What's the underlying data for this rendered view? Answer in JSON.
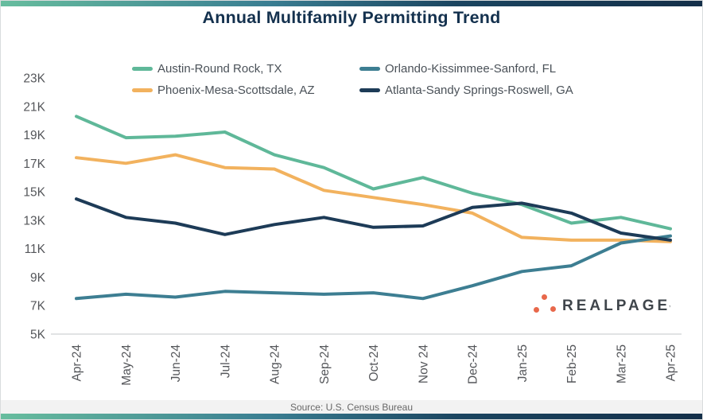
{
  "header": {
    "title": "Annual Multifamily Permitting Trend"
  },
  "chart_data": {
    "type": "line",
    "title": "Annual Multifamily Permitting Trend",
    "xlabel": "",
    "ylabel": "",
    "unit": "permits (thousands)",
    "x": [
      "Apr-24",
      "May-24",
      "Jun-24",
      "Jul-24",
      "Aug-24",
      "Sep-24",
      "Oct-24",
      "Nov 24",
      "Dec-24",
      "Jan-25",
      "Feb-25",
      "Mar-25",
      "Apr-25"
    ],
    "ylim": [
      5,
      23
    ],
    "yticks": [
      5,
      7,
      9,
      11,
      13,
      15,
      17,
      19,
      21,
      23
    ],
    "ytick_format": "{v}K",
    "grid": false,
    "legend_position": "top",
    "series": [
      {
        "name": "Austin-Round Rock, TX",
        "color": "#5fb899",
        "values": [
          20.3,
          18.8,
          18.9,
          19.2,
          17.6,
          16.7,
          15.2,
          16.0,
          14.9,
          14.1,
          12.8,
          13.2,
          12.4
        ]
      },
      {
        "name": "Orlando-Kissimmee-Sanford, FL",
        "color": "#3d7e92",
        "values": [
          7.5,
          7.8,
          7.6,
          8.0,
          7.9,
          7.8,
          7.9,
          7.5,
          8.4,
          9.4,
          9.8,
          11.4,
          11.9
        ]
      },
      {
        "name": "Phoenix-Mesa-Scottsdale, AZ",
        "color": "#f2b25e",
        "values": [
          17.4,
          17.0,
          17.6,
          16.7,
          16.6,
          15.1,
          14.6,
          14.1,
          13.5,
          11.8,
          11.6,
          11.6,
          11.5
        ]
      },
      {
        "name": "Atlanta-Sandy Springs-Roswell, GA",
        "color": "#1d3b57",
        "values": [
          14.5,
          13.2,
          12.8,
          12.0,
          12.7,
          13.2,
          12.5,
          12.6,
          13.9,
          14.2,
          13.5,
          12.1,
          11.6
        ]
      }
    ]
  },
  "logo": {
    "brand": "REALPAGE",
    "mark": "’",
    "dots_color": "#e8684b",
    "text_color": "#3f454b"
  },
  "footer": {
    "source": "Source: U.S. Census Bureau"
  },
  "theme": {
    "title_color": "#14314e",
    "axis_text_color": "#54565a",
    "axis_line_color": "#cfd2d3",
    "gradient": [
      "#67bd9e",
      "#3a7e92",
      "#142f49"
    ],
    "footer_bg": "#f2f2f2"
  }
}
